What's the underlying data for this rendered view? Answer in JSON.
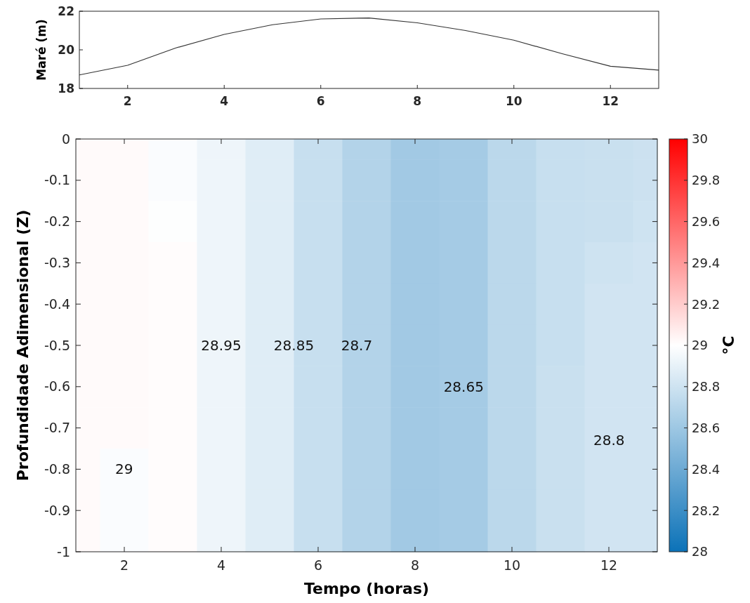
{
  "chart_data": [
    {
      "type": "line",
      "ylabel": "Maré (m)",
      "x": [
        1,
        2,
        3,
        4,
        5,
        6,
        7,
        8,
        9,
        10,
        11,
        12,
        13
      ],
      "series": [
        {
          "color": "#333333",
          "values": [
            18.7,
            19.2,
            20.1,
            20.8,
            21.3,
            21.6,
            21.65,
            21.4,
            21.0,
            20.5,
            19.8,
            19.15,
            18.95
          ]
        }
      ],
      "xlim": [
        1,
        13
      ],
      "xticks": [
        2,
        4,
        6,
        8,
        10,
        12
      ],
      "ylim": [
        18,
        22
      ],
      "yticks": [
        18,
        20,
        22
      ],
      "grid": false
    },
    {
      "type": "heatmap",
      "xlabel": "Tempo (horas)",
      "ylabel": "Profundidade Adimensional (Z)",
      "clabel": "°C",
      "x": [
        1,
        2,
        3,
        4,
        5,
        6,
        7,
        8,
        9,
        10,
        11,
        12,
        13
      ],
      "cells": [
        [
          29.02,
          29.02,
          28.98,
          28.93,
          28.87,
          28.77,
          28.69,
          28.62,
          28.63,
          28.72,
          28.77,
          28.78,
          28.79
        ],
        [
          29.02,
          29.02,
          28.98,
          28.93,
          28.87,
          28.77,
          28.69,
          28.62,
          28.63,
          28.72,
          28.77,
          28.78,
          28.79
        ],
        [
          29.02,
          29.02,
          28.99,
          28.93,
          28.87,
          28.77,
          28.69,
          28.62,
          28.63,
          28.72,
          28.77,
          28.78,
          28.8
        ],
        [
          29.02,
          29.02,
          29.01,
          28.93,
          28.87,
          28.77,
          28.69,
          28.62,
          28.63,
          28.72,
          28.77,
          28.8,
          28.81
        ],
        [
          29.02,
          29.02,
          29.01,
          28.93,
          28.87,
          28.77,
          28.69,
          28.62,
          28.63,
          28.72,
          28.77,
          28.81,
          28.81
        ],
        [
          29.02,
          29.02,
          29.01,
          28.93,
          28.87,
          28.77,
          28.69,
          28.62,
          28.63,
          28.72,
          28.77,
          28.81,
          28.81
        ],
        [
          29.02,
          29.02,
          29.01,
          28.93,
          28.87,
          28.77,
          28.69,
          28.62,
          28.63,
          28.72,
          28.78,
          28.81,
          28.81
        ],
        [
          29.02,
          29.02,
          29.01,
          28.93,
          28.87,
          28.77,
          28.69,
          28.62,
          28.63,
          28.72,
          28.78,
          28.81,
          28.81
        ],
        [
          29.02,
          28.98,
          29.01,
          28.93,
          28.87,
          28.77,
          28.69,
          28.62,
          28.63,
          28.72,
          28.78,
          28.81,
          28.81
        ],
        [
          29.02,
          28.98,
          29.01,
          28.93,
          28.87,
          28.77,
          28.69,
          28.62,
          28.63,
          28.72,
          28.78,
          28.81,
          28.81
        ],
        [
          29.02,
          28.98,
          29.01,
          28.93,
          28.87,
          28.77,
          28.69,
          28.62,
          28.63,
          28.72,
          28.78,
          28.81,
          28.81
        ]
      ],
      "xlim": [
        1,
        13
      ],
      "xticks": [
        2,
        4,
        6,
        8,
        10,
        12
      ],
      "ylim": [
        -1,
        0
      ],
      "yticks": [
        -1,
        -0.9,
        -0.8,
        -0.7,
        -0.6,
        -0.5,
        -0.4,
        -0.3,
        -0.2,
        -0.1,
        0
      ],
      "clim": [
        28,
        30
      ],
      "cticks": [
        28,
        28.2,
        28.4,
        28.6,
        28.8,
        29,
        29.2,
        29.4,
        29.6,
        29.8,
        30
      ],
      "annotations": [
        "29",
        "28.95",
        "28.85",
        "28.7",
        "28.65",
        "28.8"
      ]
    }
  ]
}
